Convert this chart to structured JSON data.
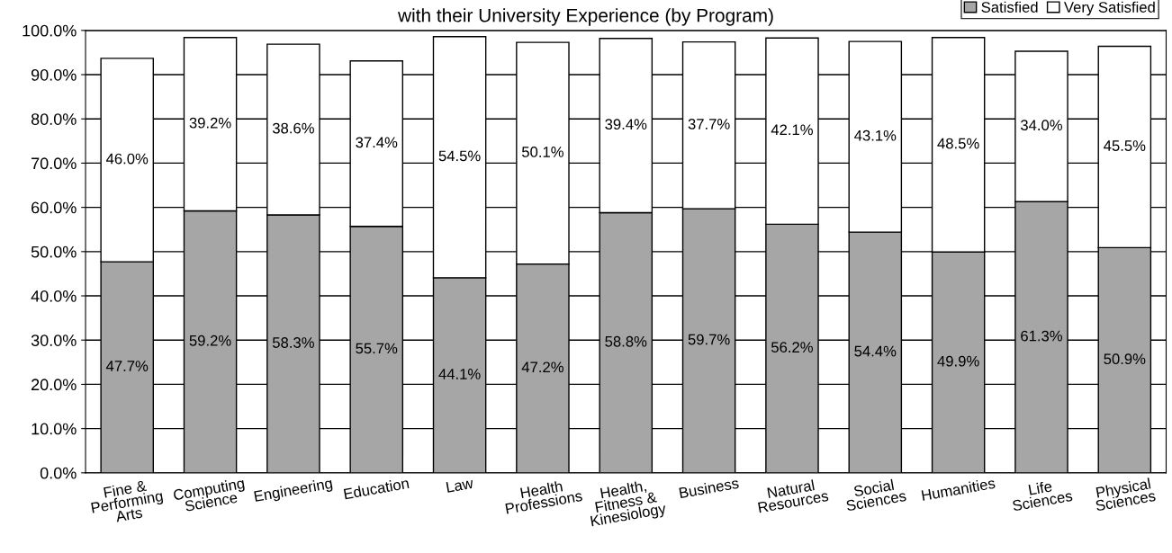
{
  "chart_data": {
    "type": "bar",
    "stacked": true,
    "title": "with their University Experience (by Program)",
    "categories": [
      "Fine &\nPerforming\nArts",
      "Computing\nScience",
      "Engineering",
      "Education",
      "Law",
      "Health\nProfessions",
      "Health,\nFitness &\nKinesiology",
      "Business",
      "Natural\nResources",
      "Social\nSciences",
      "Humanities",
      "Life\nSciences",
      "Physical\nSciences"
    ],
    "series": [
      {
        "name": "Satisfied",
        "color": "#a6a6a6",
        "values": [
          47.7,
          59.2,
          58.3,
          55.7,
          44.1,
          47.2,
          58.8,
          59.7,
          56.2,
          54.4,
          49.9,
          61.3,
          50.9
        ],
        "value_labels": [
          "47.7%",
          "59.2%",
          "58.3%",
          "55.7%",
          "44.1%",
          "47.2%",
          "58.8%",
          "59.7%",
          "56.2%",
          "54.4%",
          "49.9%",
          "61.3%",
          "50.9%"
        ]
      },
      {
        "name": "Very Satisfied",
        "color": "#ffffff",
        "values": [
          46.0,
          39.2,
          38.6,
          37.4,
          54.5,
          50.1,
          39.4,
          37.7,
          42.1,
          43.1,
          48.5,
          34.0,
          45.5
        ],
        "value_labels": [
          "46.0%",
          "39.2%",
          "38.6%",
          "37.4%",
          "54.5%",
          "50.1%",
          "39.4%",
          "37.7%",
          "42.1%",
          "43.1%",
          "48.5%",
          "34.0%",
          "45.5%"
        ]
      }
    ],
    "ylim": [
      0,
      100
    ],
    "yticks": [
      {
        "value": 0,
        "label": "0.0%"
      },
      {
        "value": 10,
        "label": "10.0%"
      },
      {
        "value": 20,
        "label": "20.0%"
      },
      {
        "value": 30,
        "label": "30.0%"
      },
      {
        "value": 40,
        "label": "40.0%"
      },
      {
        "value": 50,
        "label": "50.0%"
      },
      {
        "value": 60,
        "label": "60.0%"
      },
      {
        "value": 70,
        "label": "70.0%"
      },
      {
        "value": 80,
        "label": "80.0%"
      },
      {
        "value": 90,
        "label": "90.0%"
      },
      {
        "value": 100,
        "label": "100.0%"
      }
    ],
    "grid": "y",
    "legend": "top right"
  }
}
